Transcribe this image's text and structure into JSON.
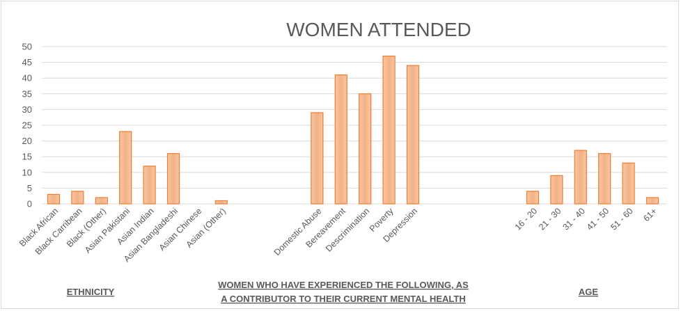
{
  "chart_data": {
    "type": "bar",
    "title": "WOMEN ATTENDED",
    "ylim": [
      0,
      50
    ],
    "yticks": [
      0,
      5,
      10,
      15,
      20,
      25,
      30,
      35,
      40,
      45,
      50
    ],
    "grid": true,
    "bar_color": "#f4b183",
    "bar_edge_color": "#ed7d31",
    "categories": [
      "Black African",
      "Black Carribean",
      "Black (Other)",
      "Asian Pakistani",
      "Asian Indian",
      "Asian Bangladeshi",
      "Asian Chinese",
      "Asian (Other)",
      "Domestic Abuse",
      "Bereavement",
      "Descrimination",
      "Poverty",
      "Depression",
      "16 - 20",
      "21 - 30",
      "31 - 40",
      "41 - 50",
      "51 - 60",
      "61+"
    ],
    "values": [
      3,
      4,
      2,
      23,
      12,
      16,
      0,
      1,
      29,
      41,
      35,
      47,
      44,
      4,
      9,
      17,
      16,
      13,
      2
    ],
    "groups": [
      {
        "label_lines": [
          "ETHNICITY"
        ]
      },
      {
        "label_lines": [
          "WOMEN WHO HAVE EXPERIENCED THE FOLLOWING, AS",
          "A CONTRIBUTOR TO THEIR CURRENT MENTAL HEALTH"
        ]
      },
      {
        "label_lines": [
          "AGE"
        ]
      }
    ]
  }
}
